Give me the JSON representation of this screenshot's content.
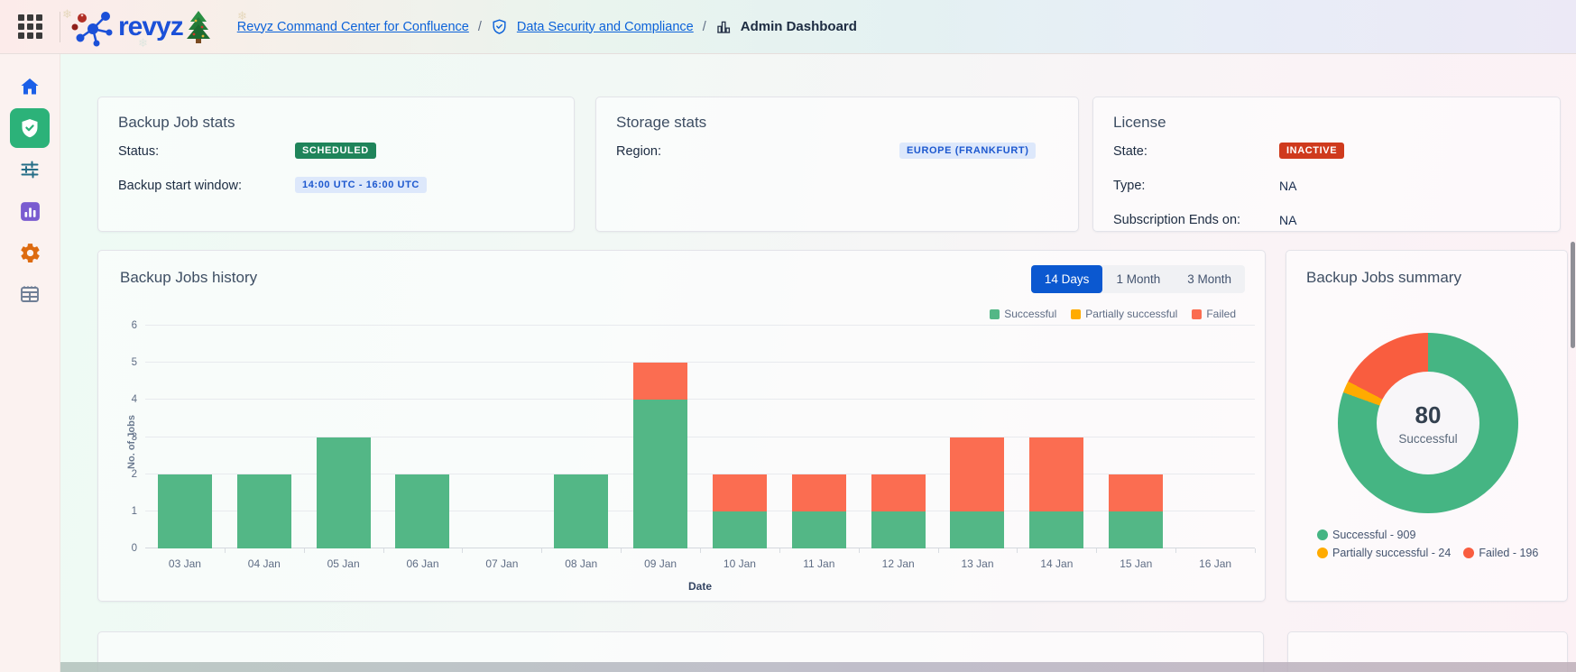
{
  "header": {
    "logo_text": "revyz",
    "breadcrumb": {
      "separator": "/",
      "items": [
        {
          "label": "Revyz Command Center for Confluence"
        },
        {
          "label": "Data Security and Compliance"
        },
        {
          "label": "Admin Dashboard"
        }
      ]
    }
  },
  "sidebar": {
    "items": [
      {
        "name": "home",
        "icon": "home-icon",
        "active": false
      },
      {
        "name": "data-security",
        "icon": "shield-check-icon",
        "active": true
      },
      {
        "name": "preferences",
        "icon": "sliders-icon",
        "active": false
      },
      {
        "name": "analytics",
        "icon": "bar-chart-tile-icon",
        "active": false
      },
      {
        "name": "settings",
        "icon": "gear-icon",
        "active": false
      },
      {
        "name": "billing",
        "icon": "table-icon",
        "active": false
      }
    ]
  },
  "stats_cards": [
    {
      "title": "Backup Job stats",
      "rows": [
        {
          "label": "Status:",
          "value": "SCHEDULED"
        },
        {
          "label": "Backup start window:",
          "value": "14:00 UTC - 16:00 UTC"
        }
      ]
    },
    {
      "title": "Storage stats",
      "rows": [
        {
          "label": "Region:",
          "value": "EUROPE (FRANKFURT)"
        }
      ]
    },
    {
      "title": "License",
      "rows": [
        {
          "label": "State:",
          "value": "INACTIVE"
        },
        {
          "label": "Type:",
          "value": "NA"
        },
        {
          "label": "Subscription Ends on:",
          "value": "NA"
        }
      ]
    }
  ],
  "history": {
    "title": "Backup Jobs history",
    "tabs": [
      "14 Days",
      "1 Month",
      "3 Month"
    ],
    "active_tab": "14 Days"
  },
  "summary": {
    "title": "Backup Jobs summary"
  },
  "chart_data": [
    {
      "type": "bar",
      "stacked": true,
      "title": "Backup Jobs history",
      "categories": [
        "03 Jan",
        "04 Jan",
        "05 Jan",
        "06 Jan",
        "07 Jan",
        "08 Jan",
        "09 Jan",
        "10 Jan",
        "11 Jan",
        "12 Jan",
        "13 Jan",
        "14 Jan",
        "15 Jan",
        "16 Jan"
      ],
      "series": [
        {
          "name": "Successful",
          "color": "#53b786",
          "values": [
            2,
            2,
            3,
            2,
            0,
            2,
            4,
            1,
            1,
            1,
            1,
            1,
            1,
            0
          ]
        },
        {
          "name": "Partially successful",
          "color": "#ffab00",
          "values": [
            0,
            0,
            0,
            0,
            0,
            0,
            0,
            0,
            0,
            0,
            0,
            0,
            0,
            0
          ]
        },
        {
          "name": "Failed",
          "color": "#fb6d51",
          "values": [
            0,
            0,
            0,
            0,
            0,
            0,
            1,
            1,
            1,
            1,
            2,
            2,
            1,
            0
          ]
        }
      ],
      "xlabel": "Date",
      "ylabel": "No. of Jobs",
      "ylim": [
        0,
        6
      ],
      "yticks": [
        0,
        1,
        2,
        3,
        4,
        5,
        6
      ],
      "grid": true,
      "legend_position": "top-right"
    },
    {
      "type": "pie",
      "subtype": "donut",
      "title": "Backup Jobs summary",
      "center_value": "80",
      "center_label": "Successful",
      "slices": [
        {
          "label": "Successful",
          "value": 909,
          "color": "#45b583"
        },
        {
          "label": "Partially successful",
          "value": 24,
          "color": "#ffab00"
        },
        {
          "label": "Failed",
          "value": 196,
          "color": "#f95d3f"
        }
      ],
      "legend_separator": " - "
    }
  ]
}
